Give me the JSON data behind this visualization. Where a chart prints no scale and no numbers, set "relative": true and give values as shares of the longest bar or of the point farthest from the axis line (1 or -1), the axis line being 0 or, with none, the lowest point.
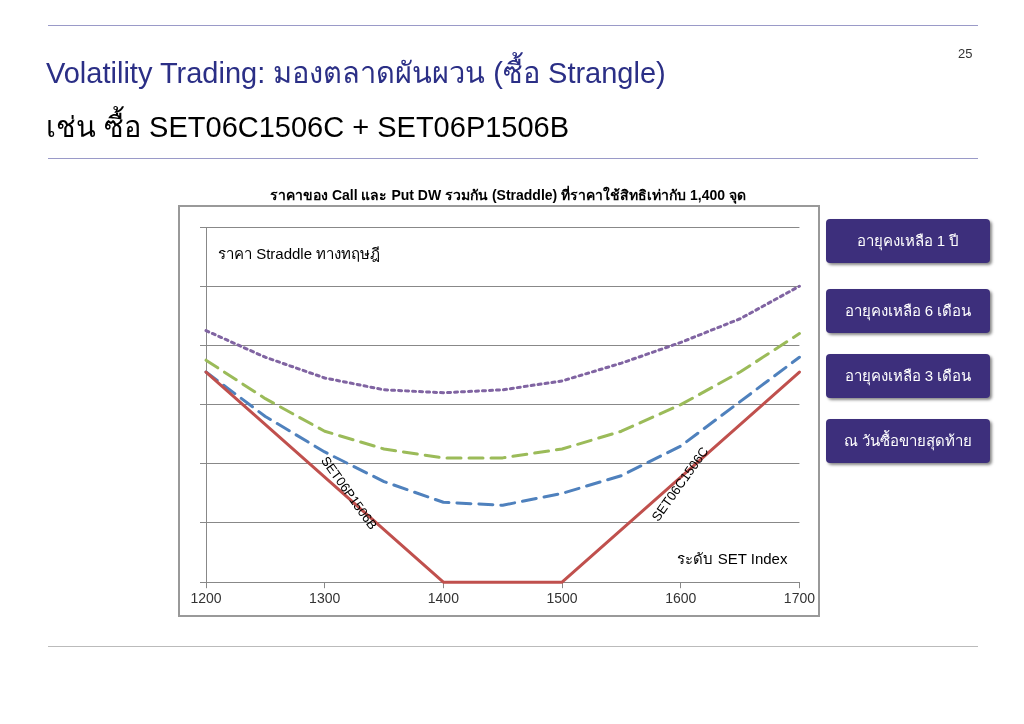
{
  "chart_data": {
    "type": "line",
    "title": "Volatility Trading: มองตลาดผันผวน (ซื้อ Strangle)",
    "subtitle": "เช่น ซื้อ SET06C1506C + SET06P1506B",
    "xlabel": "ระดับ SET Index",
    "ylabel": "ราคา Straddle ทางทฤษฎี",
    "relative": true,
    "xlim": [
      1200,
      1700
    ],
    "xticks": [
      1200,
      1300,
      1400,
      1500,
      1600,
      1700
    ],
    "grid": "y",
    "legend": false,
    "marker": "none",
    "annotations": [
      "25",
      "ราคาของ Call และ Put DW รวมกัน (Straddle) ที่ราคาใช้สิทธิเท่ากับ 1,400 จุด",
      {
        "text": "SET06P1506B",
        "x": 1320,
        "y": 0.3
      },
      {
        "text": "SET06C1506C",
        "x": 1600,
        "y": 0.33
      }
    ],
    "series": [
      {
        "name": "ณ วันซื้อขายสุดท้าย",
        "color": "#c0504d",
        "line_style": "solid",
        "x": [
          1200,
          1400,
          1500,
          1700
        ],
        "values": [
          0.71,
          0,
          0,
          0.71
        ]
      },
      {
        "name": "อายุคงเหลือ 3 เดือน",
        "color": "#4f81bd",
        "line_style": "dashed",
        "x": [
          1200,
          1250,
          1300,
          1350,
          1400,
          1450,
          1500,
          1550,
          1600,
          1650,
          1700
        ],
        "values": [
          0.71,
          0.56,
          0.44,
          0.34,
          0.27,
          0.26,
          0.3,
          0.36,
          0.46,
          0.61,
          0.76
        ]
      },
      {
        "name": "อายุคงเหลือ 6 เดือน",
        "color": "#9bbb59",
        "line_style": "dashed",
        "x": [
          1200,
          1250,
          1300,
          1350,
          1400,
          1450,
          1500,
          1550,
          1600,
          1650,
          1700
        ],
        "values": [
          0.75,
          0.62,
          0.51,
          0.45,
          0.42,
          0.42,
          0.45,
          0.51,
          0.6,
          0.71,
          0.84
        ]
      },
      {
        "name": "อายุคงเหลือ 1 ปี",
        "color": "#8064a2",
        "line_style": "dotted",
        "x": [
          1200,
          1250,
          1300,
          1350,
          1400,
          1450,
          1500,
          1550,
          1600,
          1650,
          1700
        ],
        "values": [
          0.85,
          0.76,
          0.69,
          0.65,
          0.64,
          0.65,
          0.68,
          0.74,
          0.81,
          0.89,
          1.0
        ]
      }
    ]
  }
}
